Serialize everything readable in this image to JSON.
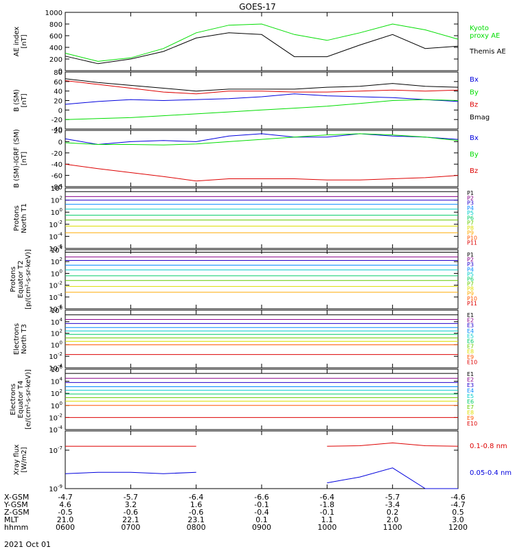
{
  "title": "GOES-17",
  "date_label": "2021 Oct 01",
  "orbit_table": {
    "row_labels": [
      "X-GSM",
      "Y-GSM",
      "Z-GSM",
      "MLT",
      "hhmm"
    ],
    "columns": [
      [
        "-4.7",
        "4.6",
        "-0.5",
        "21.0",
        "0600"
      ],
      [
        "-5.7",
        "3.2",
        "-0.6",
        "22.1",
        "0700"
      ],
      [
        "-6.4",
        "1.6",
        "-0.6",
        "23.1",
        "0800"
      ],
      [
        "-6.6",
        "-0.1",
        "-0.4",
        "0.1",
        "0900"
      ],
      [
        "-6.4",
        "-1.8",
        "-0.1",
        "1.1",
        "1000"
      ],
      [
        "-5.7",
        "-3.4",
        "0.2",
        "2.0",
        "1100"
      ],
      [
        "-4.6",
        "-4.7",
        "0.5",
        "3.0",
        "1200"
      ]
    ]
  },
  "colors": {
    "black": "#000000",
    "green": "#00dd00",
    "blue": "#0000dd",
    "red": "#dd0000",
    "ladder": [
      "#000000",
      "#880088",
      "#2200cc",
      "#0088ff",
      "#00cccc",
      "#00cc66",
      "#66cc00",
      "#dddd00",
      "#ffaa00",
      "#ff5500",
      "#dd0000"
    ]
  },
  "chart_data": [
    {
      "type": "line",
      "ylabel": "AE index\n[nT]",
      "ylim": [
        0,
        1000
      ],
      "yticks": [
        "0",
        "200",
        "400",
        "600",
        "800",
        "1000"
      ],
      "x": [
        "06:00",
        "06:30",
        "07:00",
        "07:30",
        "08:00",
        "08:30",
        "09:00",
        "09:30",
        "10:00",
        "10:30",
        "11:00",
        "11:30",
        "12:00"
      ],
      "series": [
        {
          "name": "Kyoto\nproxy AE",
          "color": "#00dd00",
          "values": [
            300,
            160,
            220,
            380,
            650,
            780,
            800,
            620,
            520,
            650,
            800,
            700,
            540
          ]
        },
        {
          "name": "Themis AE",
          "color": "#000000",
          "values": [
            250,
            120,
            200,
            330,
            560,
            650,
            620,
            240,
            240,
            440,
            620,
            380,
            420
          ]
        }
      ]
    },
    {
      "type": "line",
      "ylabel": "B (SM)\n[nT]",
      "ylim": [
        -40,
        80
      ],
      "yticks": [
        "-40",
        "-20",
        "0",
        "20",
        "40",
        "60",
        "80"
      ],
      "x": [
        "06:00",
        "06:30",
        "07:00",
        "07:30",
        "08:00",
        "08:30",
        "09:00",
        "09:30",
        "10:00",
        "10:30",
        "11:00",
        "11:30",
        "12:00"
      ],
      "series": [
        {
          "name": "Bx",
          "color": "#0000dd",
          "values": [
            12,
            18,
            22,
            20,
            22,
            24,
            28,
            34,
            30,
            28,
            26,
            22,
            18
          ]
        },
        {
          "name": "By",
          "color": "#00dd00",
          "values": [
            -20,
            -18,
            -16,
            -12,
            -8,
            -4,
            0,
            4,
            8,
            14,
            20,
            22,
            20
          ]
        },
        {
          "name": "Bz",
          "color": "#dd0000",
          "values": [
            62,
            54,
            46,
            38,
            34,
            40,
            40,
            38,
            38,
            40,
            42,
            40,
            42
          ]
        },
        {
          "name": "Bmag",
          "color": "#000000",
          "values": [
            66,
            58,
            52,
            46,
            40,
            44,
            44,
            44,
            48,
            50,
            56,
            50,
            48
          ]
        }
      ]
    },
    {
      "type": "line",
      "ylabel": "B (SM)-IGRF (SM)\n[nT]",
      "ylim": [
        -80,
        20
      ],
      "yticks": [
        "-80",
        "-60",
        "-40",
        "-20",
        "0",
        "20"
      ],
      "x": [
        "06:00",
        "06:30",
        "07:00",
        "07:30",
        "08:00",
        "08:30",
        "09:00",
        "09:30",
        "10:00",
        "10:30",
        "11:00",
        "11:30",
        "12:00"
      ],
      "series": [
        {
          "name": "Bx",
          "color": "#0000dd",
          "values": [
            5,
            -5,
            0,
            2,
            0,
            10,
            14,
            8,
            8,
            14,
            10,
            8,
            4
          ]
        },
        {
          "name": "By",
          "color": "#00dd00",
          "values": [
            -2,
            -5,
            -5,
            -6,
            -4,
            0,
            4,
            8,
            12,
            14,
            12,
            8,
            2
          ]
        },
        {
          "name": "Bz",
          "color": "#dd0000",
          "values": [
            -40,
            -48,
            -55,
            -62,
            -70,
            -66,
            -66,
            -66,
            -68,
            -68,
            -66,
            -64,
            -60
          ]
        }
      ]
    },
    {
      "type": "line",
      "ylabel": "Protons\nNorth T1",
      "yscale": "log",
      "ylim_exp": [
        -6,
        4
      ],
      "x_range": [
        "06:00",
        "12:00"
      ],
      "series": [
        {
          "name": "P1",
          "color": "#000000",
          "log_level": 3.4
        },
        {
          "name": "P2",
          "color": "#880088",
          "log_level": 2.6
        },
        {
          "name": "P3",
          "color": "#2200cc",
          "log_level": 2.0
        },
        {
          "name": "P4",
          "color": "#0088ff",
          "log_level": 1.3
        },
        {
          "name": "P5",
          "color": "#00cccc",
          "log_level": 0.5
        },
        {
          "name": "P6",
          "color": "#00cc66",
          "log_level": -0.5
        },
        {
          "name": "P7",
          "color": "#66cc00",
          "log_level": -1.3
        },
        {
          "name": "P8",
          "color": "#dddd00",
          "log_level": -2.3
        },
        {
          "name": "P9",
          "color": "#ffaa00",
          "log_level": -3.4
        },
        {
          "name": "P10",
          "color": "#ff5500",
          "log_level": null
        },
        {
          "name": "P11",
          "color": "#dd0000",
          "log_level": null
        }
      ]
    },
    {
      "type": "line",
      "ylabel": "Protons\nEquator T2\n[p/(cm²-s-sr-keV)]",
      "yscale": "log",
      "ylim_exp": [
        -6,
        4
      ],
      "x_range": [
        "06:00",
        "12:00"
      ],
      "series": [
        {
          "name": "P1",
          "color": "#000000",
          "log_level": 3.6
        },
        {
          "name": "P2",
          "color": "#880088",
          "log_level": 2.8
        },
        {
          "name": "P3",
          "color": "#2200cc",
          "log_level": 2.2
        },
        {
          "name": "P4",
          "color": "#0088ff",
          "log_level": 1.4
        },
        {
          "name": "P5",
          "color": "#00cccc",
          "log_level": 0.6
        },
        {
          "name": "P6",
          "color": "#00cc66",
          "log_level": -0.4
        },
        {
          "name": "P7",
          "color": "#66cc00",
          "log_level": -1.2
        },
        {
          "name": "P8",
          "color": "#dddd00",
          "log_level": -2.2
        },
        {
          "name": "P9",
          "color": "#ffaa00",
          "log_level": -3.2
        },
        {
          "name": "P10",
          "color": "#ff5500",
          "log_level": null
        },
        {
          "name": "P11",
          "color": "#dd0000",
          "log_level": null
        }
      ]
    },
    {
      "type": "line",
      "ylabel": "Electrons\nNorth T3",
      "yscale": "log",
      "ylim_exp": [
        -4,
        6
      ],
      "x_range": [
        "06:00",
        "12:00"
      ],
      "series": [
        {
          "name": "E1",
          "color": "#000000",
          "log_level": 5.2
        },
        {
          "name": "E2",
          "color": "#880088",
          "log_level": 4.4
        },
        {
          "name": "E3",
          "color": "#2200cc",
          "log_level": 3.7
        },
        {
          "name": "E4",
          "color": "#0088ff",
          "log_level": 3.0
        },
        {
          "name": "E5",
          "color": "#00cccc",
          "log_level": 2.4
        },
        {
          "name": "E6",
          "color": "#00cc66",
          "log_level": 1.8
        },
        {
          "name": "E7",
          "color": "#66cc00",
          "log_level": 1.2
        },
        {
          "name": "E8",
          "color": "#dddd00",
          "log_level": 0.6
        },
        {
          "name": "E9",
          "color": "#ff5500",
          "log_level": 0.0
        },
        {
          "name": "E10",
          "color": "#dd0000",
          "log_level": -1.7
        }
      ]
    },
    {
      "type": "line",
      "ylabel": "Electrons\nEquator T4\n[e/(cm²-s-sr-keV)]",
      "yscale": "log",
      "ylim_exp": [
        -4,
        6
      ],
      "x_range": [
        "06:00",
        "12:00"
      ],
      "series": [
        {
          "name": "E1",
          "color": "#000000",
          "log_level": 5.3
        },
        {
          "name": "E2",
          "color": "#880088",
          "log_level": 4.5
        },
        {
          "name": "E3",
          "color": "#2200cc",
          "log_level": 3.8
        },
        {
          "name": "E4",
          "color": "#0088ff",
          "log_level": 3.1
        },
        {
          "name": "E5",
          "color": "#00cccc",
          "log_level": 2.5
        },
        {
          "name": "E6",
          "color": "#00cc66",
          "log_level": 1.9
        },
        {
          "name": "E7",
          "color": "#66cc00",
          "log_level": 1.3
        },
        {
          "name": "E8",
          "color": "#dddd00",
          "log_level": 0.7
        },
        {
          "name": "E9",
          "color": "#ff5500",
          "log_level": 0.0
        },
        {
          "name": "E10",
          "color": "#dd0000",
          "log_level": -2.0
        }
      ]
    },
    {
      "type": "line",
      "ylabel": "Xray flux\n[W/m2]",
      "yscale": "log",
      "ylim_exp": [
        -9,
        -6
      ],
      "x": [
        "06:00",
        "06:30",
        "07:00",
        "07:30",
        "08:00",
        "08:30",
        "09:00",
        "09:30",
        "10:00",
        "10:30",
        "11:00",
        "11:30",
        "12:00"
      ],
      "series": [
        {
          "name": "0.1-0.8 nm",
          "color": "#dd0000",
          "values": [
            1.6e-07,
            1.6e-07,
            1.6e-07,
            1.6e-07,
            1.6e-07,
            null,
            null,
            null,
            1.6e-07,
            1.7e-07,
            2.4e-07,
            1.7e-07,
            1.6e-07
          ]
        },
        {
          "name": "0.05-0.4 nm",
          "color": "#0000dd",
          "values": [
            6e-09,
            7e-09,
            7e-09,
            6e-09,
            7e-09,
            null,
            null,
            null,
            2e-09,
            4e-09,
            1.2e-08,
            1e-09,
            1e-09
          ]
        }
      ]
    }
  ]
}
